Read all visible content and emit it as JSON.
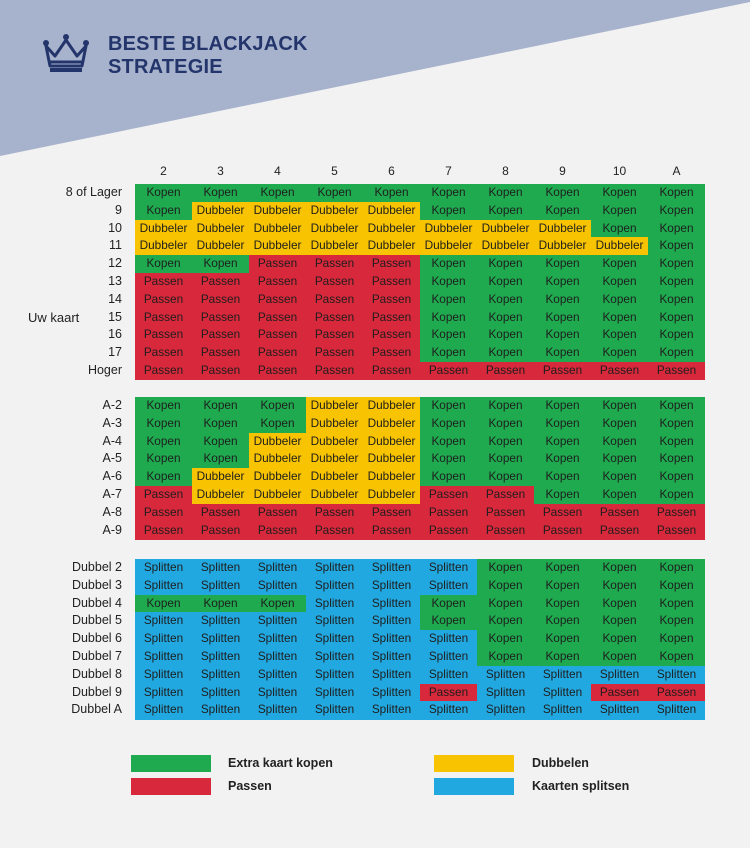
{
  "header": {
    "title_line1": "BESTE BLACKJACK",
    "title_line2": "STRATEGIE",
    "logo_icon": "crown-icon"
  },
  "columns": [
    "2",
    "3",
    "4",
    "5",
    "6",
    "7",
    "8",
    "9",
    "10",
    "A"
  ],
  "side_label": "Uw kaart",
  "labels": {
    "K": "Kopen",
    "D": "Dubbeler",
    "P": "Passen",
    "S": "Splitten"
  },
  "colors": {
    "K": "#1faa4f",
    "D": "#f8c300",
    "P": "#d8283b",
    "S": "#22a8e0",
    "banner": "#a7b2cc",
    "title": "#23356b"
  },
  "sections": [
    {
      "rows": [
        {
          "label": "8 of Lager",
          "cells": "KKKKKKKKKK"
        },
        {
          "label": "9",
          "cells": "KDDDDKKKKK"
        },
        {
          "label": "10",
          "cells": "DDDDDDDDKK"
        },
        {
          "label": "11",
          "cells": "DDDDDDDDDK"
        },
        {
          "label": "12",
          "cells": "KKPPPKKKKK"
        },
        {
          "label": "13",
          "cells": "PPPPPKKKKK"
        },
        {
          "label": "14",
          "cells": "PPPPPKKKKK"
        },
        {
          "label": "15",
          "cells": "PPPPPKKKKK"
        },
        {
          "label": "16",
          "cells": "PPPPPKKKKK"
        },
        {
          "label": "17",
          "cells": "PPPPPKKKKK"
        },
        {
          "label": "Hoger",
          "cells": "PPPPPPPPPP"
        }
      ]
    },
    {
      "rows": [
        {
          "label": "A-2",
          "cells": "KKKDDKKKKK"
        },
        {
          "label": "A-3",
          "cells": "KKKDDKKKKK"
        },
        {
          "label": "A-4",
          "cells": "KKDDDKKKKK"
        },
        {
          "label": "A-5",
          "cells": "KKDDDKKKKK"
        },
        {
          "label": "A-6",
          "cells": "KDDDDKKKKK"
        },
        {
          "label": "A-7",
          "cells": "PDDDDPPKKK"
        },
        {
          "label": "A-8",
          "cells": "PPPPPPPPPP"
        },
        {
          "label": "A-9",
          "cells": "PPPPPPPPPP"
        }
      ]
    },
    {
      "rows": [
        {
          "label": "Dubbel 2",
          "cells": "SSSSSSKKKK"
        },
        {
          "label": "Dubbel 3",
          "cells": "SSSSSSKKKK"
        },
        {
          "label": "Dubbel 4",
          "cells": "KKKSSKKKKK"
        },
        {
          "label": "Dubbel 5",
          "cells": "SSSSSKKKKK"
        },
        {
          "label": "Dubbel 6",
          "cells": "SSSSSSKKKK"
        },
        {
          "label": "Dubbel 7",
          "cells": "SSSSSSKKKK"
        },
        {
          "label": "Dubbel 8",
          "cells": "SSSSSSSSSS"
        },
        {
          "label": "Dubbel 9",
          "cells": "SSSSSPSSPP"
        },
        {
          "label": "Dubbel A",
          "cells": "SSSSSSSSSS"
        }
      ]
    }
  ],
  "legend": [
    {
      "code": "K",
      "text": "Extra kaart kopen"
    },
    {
      "code": "D",
      "text": "Dubbelen"
    },
    {
      "code": "P",
      "text": "Passen"
    },
    {
      "code": "S",
      "text": "Kaarten splitsen"
    }
  ]
}
